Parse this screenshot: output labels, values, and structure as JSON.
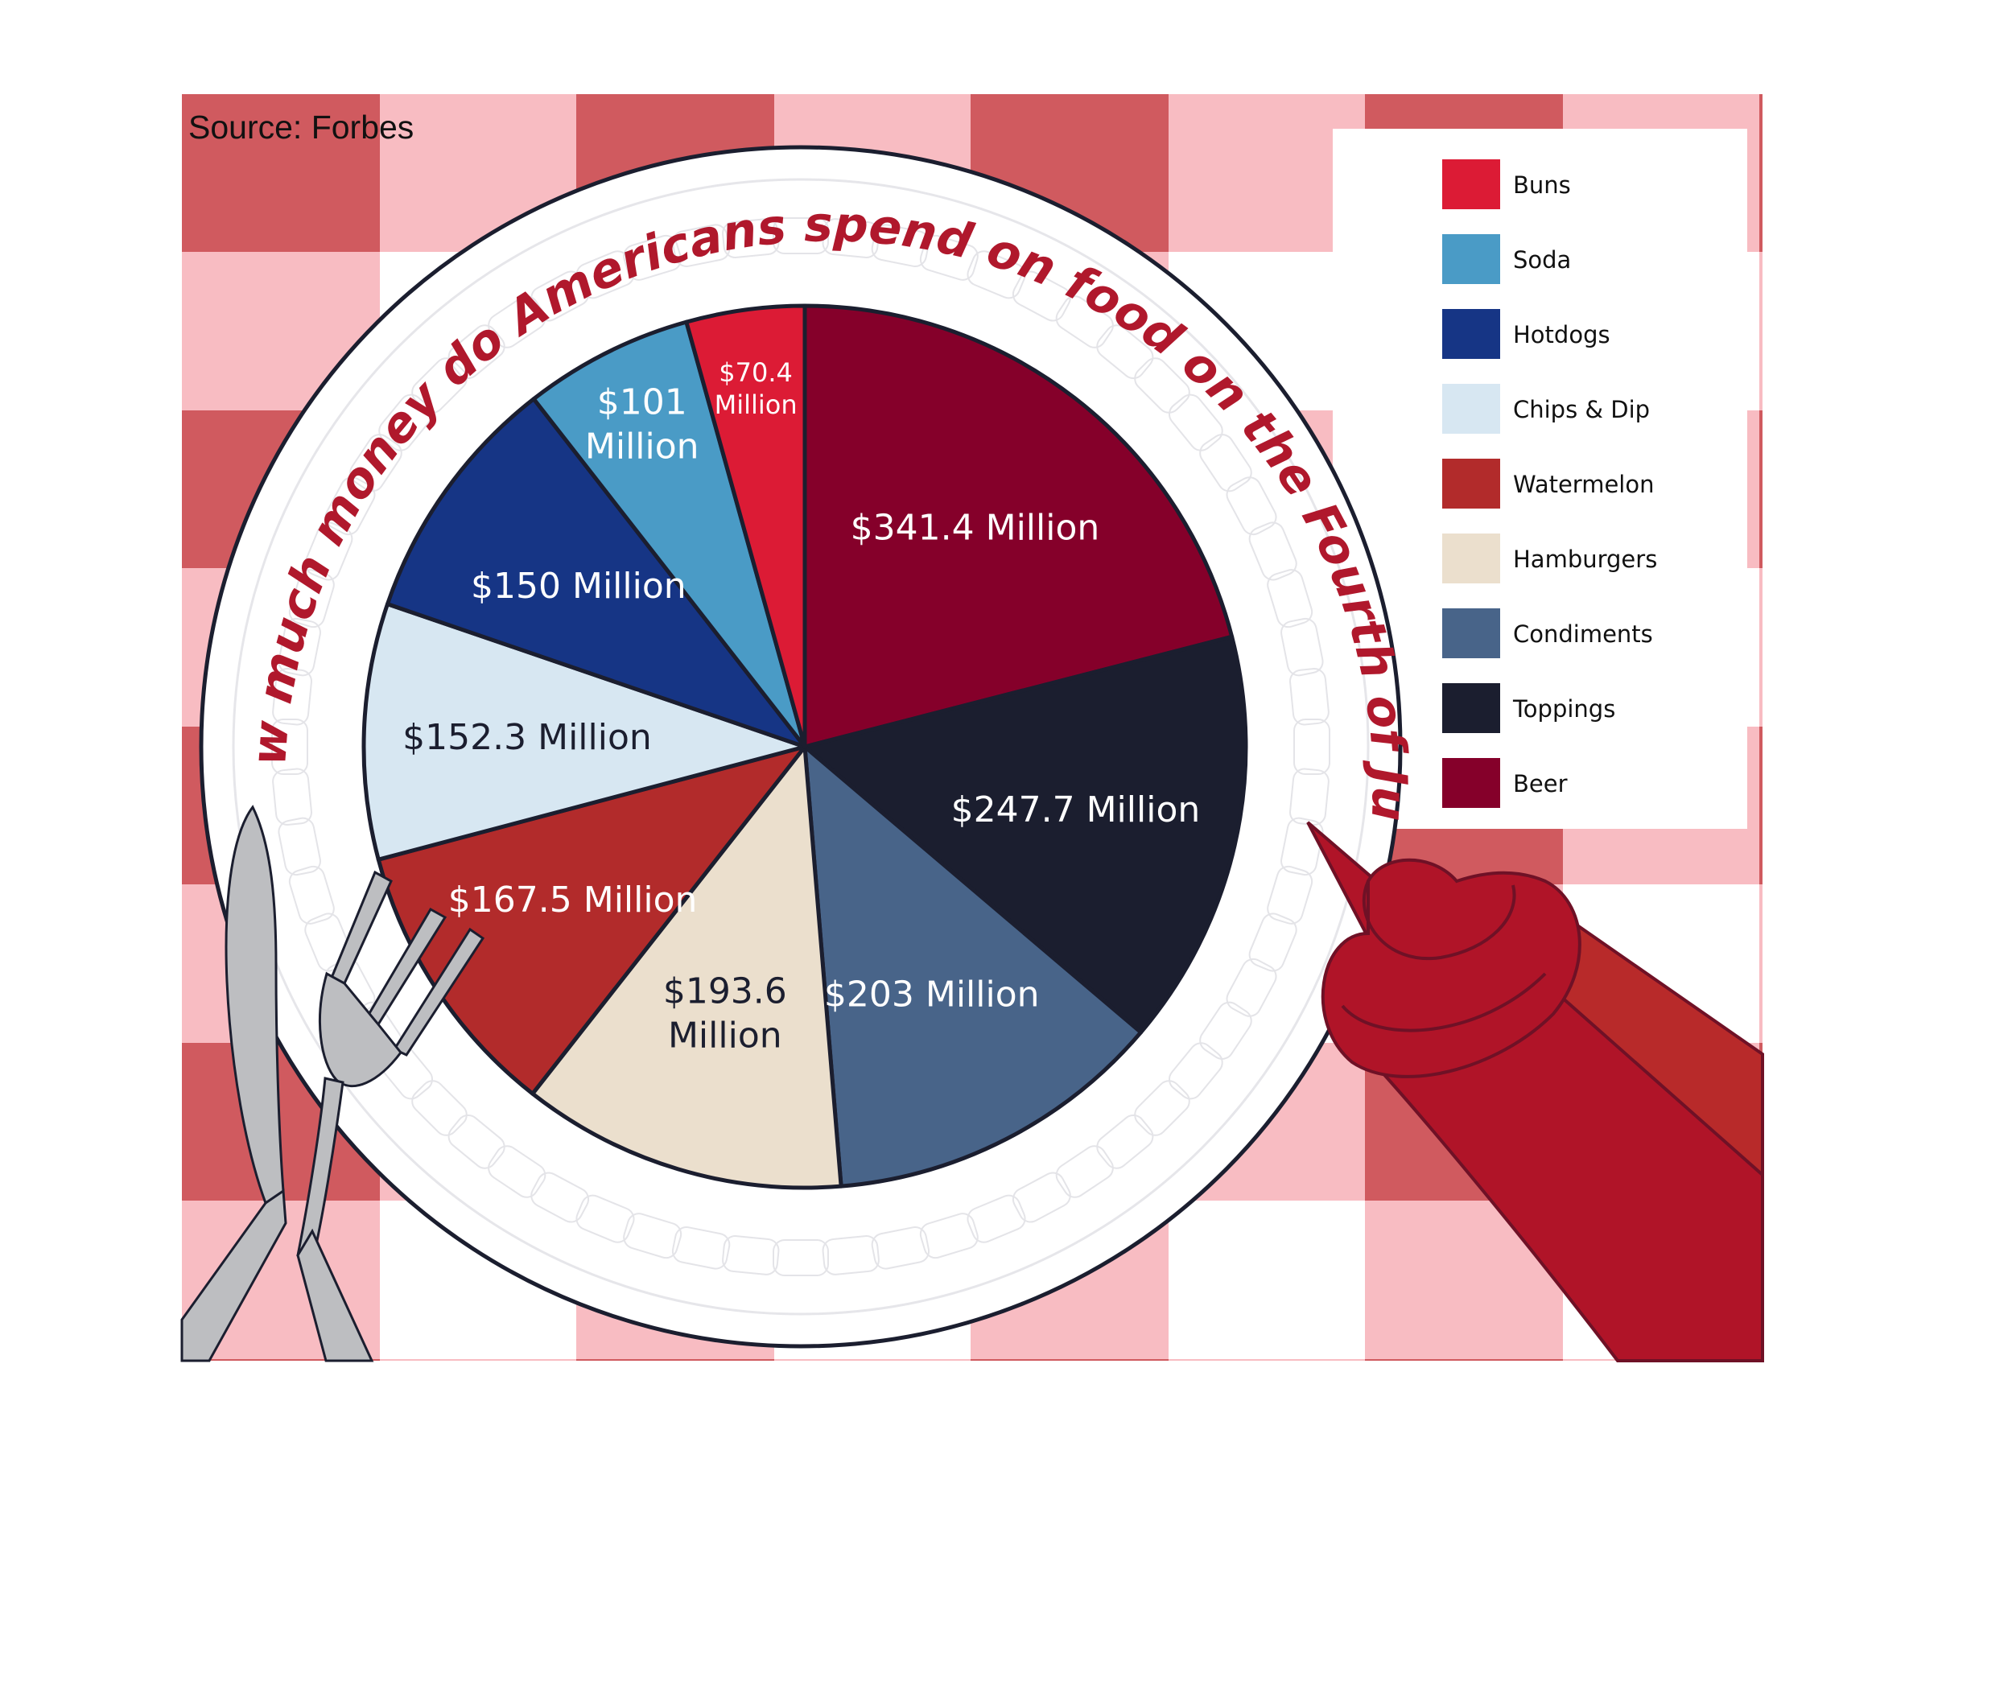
{
  "source": "Source: Forbes",
  "title": "How much money do Americans spend on food on the Fourth of July?",
  "colors": {
    "tablecloth_light": "#f8bcc2",
    "tablecloth_dark": "#d05a5f",
    "plate": "#ffffff",
    "ketchup": "#b01428",
    "title": "#b0182c"
  },
  "chart_data": {
    "type": "pie",
    "title": "How much money do Americans spend on food on the Fourth of July?",
    "legend_position": "top-right",
    "slices": [
      {
        "category": "Beer",
        "value": 341.4,
        "label": "$341.4 Million",
        "color": "#85002a",
        "text_color": "#ffffff"
      },
      {
        "category": "Toppings",
        "value": 247.7,
        "label": "$247.7 Million",
        "color": "#1b1e2f",
        "text_color": "#ffffff"
      },
      {
        "category": "Condiments",
        "value": 203,
        "label": "$203 Million",
        "color": "#486489",
        "text_color": "#ffffff"
      },
      {
        "category": "Hamburgers",
        "value": 193.6,
        "label": "$193.6 Million",
        "color": "#ebdfcd",
        "text_color": "#1b1e2f"
      },
      {
        "category": "Watermelon",
        "value": 167.5,
        "label": "$167.5 Million",
        "color": "#b22b2b",
        "text_color": "#ffffff"
      },
      {
        "category": "Chips & Dip",
        "value": 152.3,
        "label": "$152.3 Million",
        "color": "#d7e7f2",
        "text_color": "#1b1e2f"
      },
      {
        "category": "Hotdogs",
        "value": 150,
        "label": "$150 Million",
        "color": "#163585",
        "text_color": "#ffffff"
      },
      {
        "category": "Soda",
        "value": 101,
        "label": "$101 Million",
        "color": "#4a9bc6",
        "text_color": "#ffffff"
      },
      {
        "category": "Buns",
        "value": 70.4,
        "label": "$70.4 Million",
        "color": "#dc1b35",
        "text_color": "#ffffff"
      }
    ],
    "legend": [
      {
        "label": "Buns",
        "color": "#dc1b35"
      },
      {
        "label": "Soda",
        "color": "#4a9bc6"
      },
      {
        "label": "Hotdogs",
        "color": "#163585"
      },
      {
        "label": "Chips & Dip",
        "color": "#d7e7f2"
      },
      {
        "label": "Watermelon",
        "color": "#b22b2b"
      },
      {
        "label": "Hamburgers",
        "color": "#ebdfcd"
      },
      {
        "label": "Condiments",
        "color": "#486489"
      },
      {
        "label": "Toppings",
        "color": "#1b1e2f"
      },
      {
        "label": "Beer",
        "color": "#85002a"
      }
    ]
  }
}
